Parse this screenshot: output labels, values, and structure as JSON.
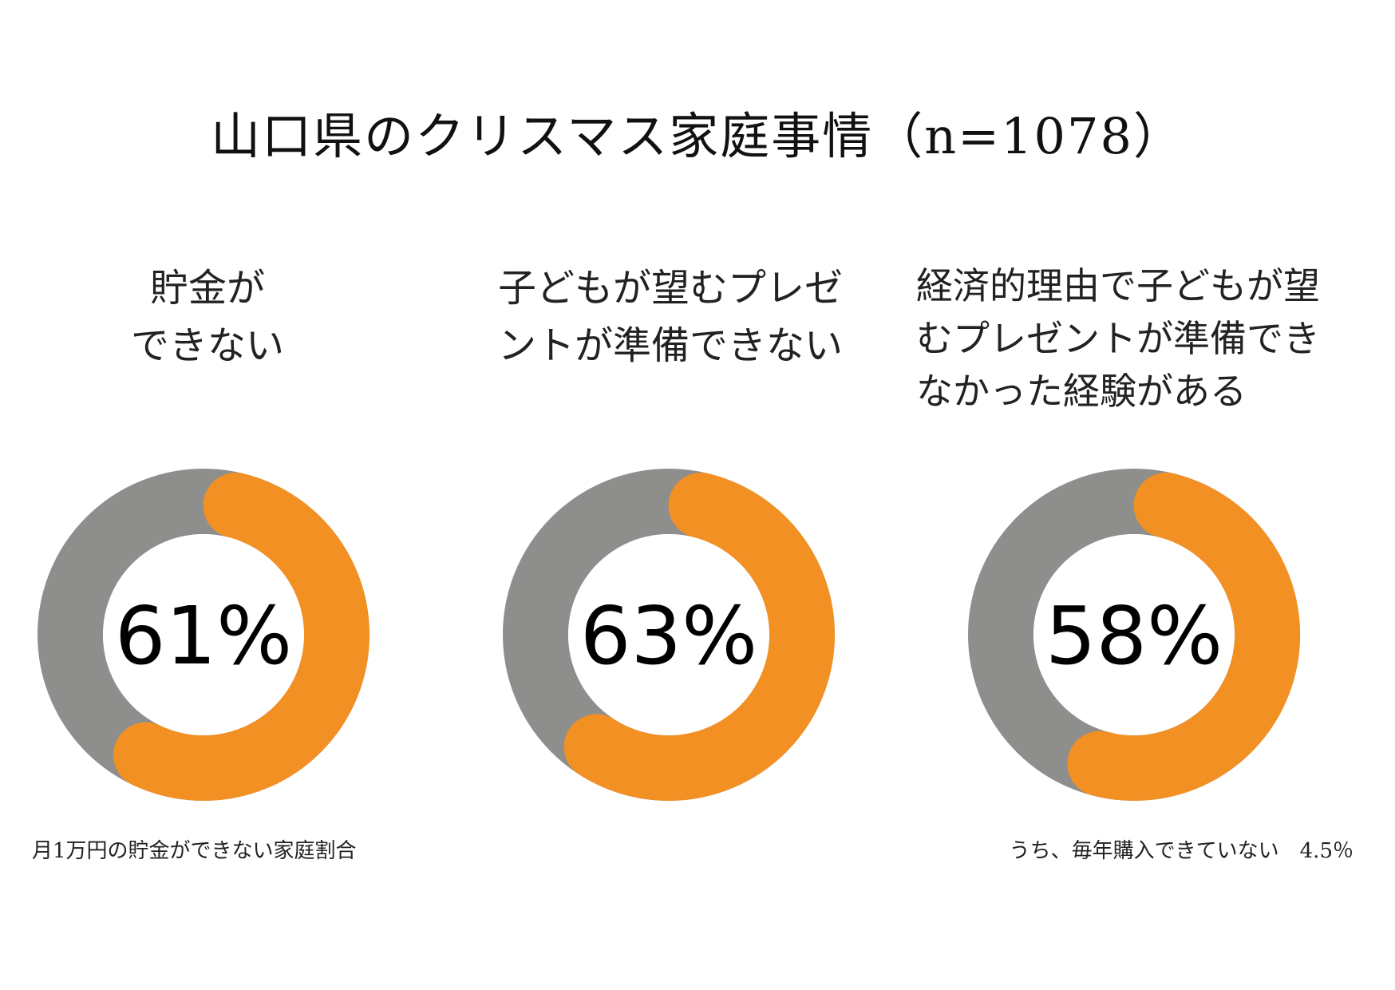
{
  "title": "山口県のクリスマス家庭事情（n=1078）",
  "colors": {
    "filled": "#F39023",
    "remaining": "#8E8E8C",
    "center": "#ffffff"
  },
  "chart_data": [
    {
      "type": "pie",
      "title": "貯金が\nできない",
      "values": [
        61,
        39
      ],
      "categories": [
        "filled",
        "remaining"
      ],
      "label": "61%",
      "note": "月1万円の貯金ができない家庭割合"
    },
    {
      "type": "pie",
      "title": "子どもが望むプレゼ\nントが準備できない",
      "values": [
        63,
        37
      ],
      "categories": [
        "filled",
        "remaining"
      ],
      "label": "63%",
      "note": ""
    },
    {
      "type": "pie",
      "title": "経済的理由で子どもが望\nむプレゼントが準備でき\nなかった経験がある",
      "values": [
        58,
        42
      ],
      "categories": [
        "filled",
        "remaining"
      ],
      "label": "58%",
      "note": "うち、毎年購入できていない　4.5％"
    }
  ]
}
